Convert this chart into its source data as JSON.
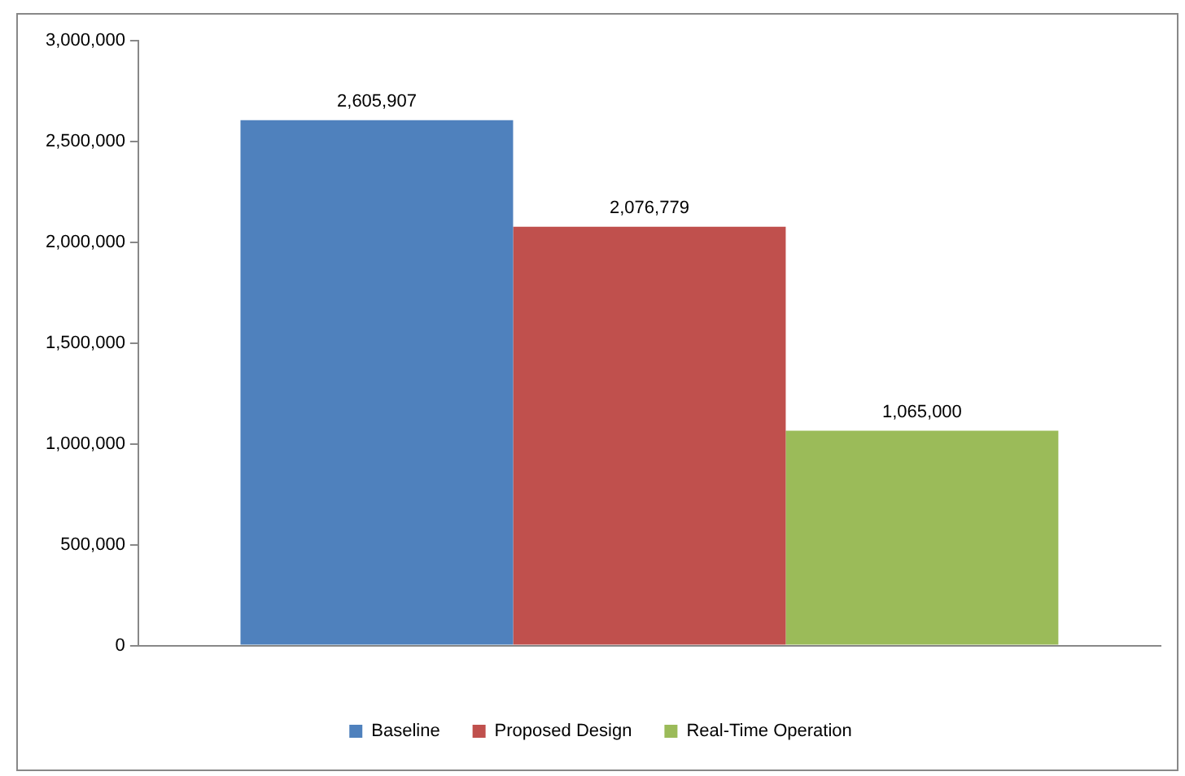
{
  "chart_data": {
    "type": "bar",
    "categories": [
      null
    ],
    "series": [
      {
        "name": "Baseline",
        "color": "#4f81bd",
        "values": [
          2605907
        ],
        "value_labels": [
          "2,605,907"
        ]
      },
      {
        "name": "Proposed Design",
        "color": "#c0504d",
        "values": [
          2076779
        ],
        "value_labels": [
          "2,076,779"
        ]
      },
      {
        "name": "Real-Time Operation",
        "color": "#9bbb59",
        "values": [
          1065000
        ],
        "value_labels": [
          "1,065,000"
        ]
      }
    ],
    "ylim": [
      0,
      3000000
    ],
    "yticks": [
      {
        "value": 0,
        "label": "0"
      },
      {
        "value": 500000,
        "label": "500,000"
      },
      {
        "value": 1000000,
        "label": "1,000,000"
      },
      {
        "value": 1500000,
        "label": "1,500,000"
      },
      {
        "value": 2000000,
        "label": "2,000,000"
      },
      {
        "value": 2500000,
        "label": "2,500,000"
      },
      {
        "value": 3000000,
        "label": "3,000,000"
      }
    ],
    "grid": false,
    "legend": "bottom"
  }
}
